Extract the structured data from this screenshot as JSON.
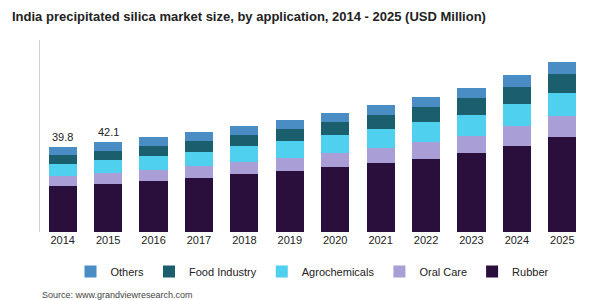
{
  "chart_data": {
    "type": "bar",
    "title": "India precipitated silica market size, by application, 2014 - 2025 (USD Million)",
    "source": "Source: www.grandviewresearch.com",
    "categories": [
      "2014",
      "2015",
      "2016",
      "2017",
      "2018",
      "2019",
      "2020",
      "2021",
      "2022",
      "2023",
      "2024",
      "2025"
    ],
    "series": [
      {
        "name": "Rubber",
        "color": "#2a0e3c",
        "values": [
          21.6,
          22.7,
          24.0,
          25.4,
          27.0,
          28.6,
          30.4,
          32.3,
          34.4,
          36.8,
          40.5,
          44.5
        ]
      },
      {
        "name": "Oral Care",
        "color": "#a99ed6",
        "values": [
          4.6,
          4.9,
          5.2,
          5.5,
          5.9,
          6.3,
          6.8,
          7.2,
          7.8,
          8.4,
          9.0,
          9.8
        ]
      },
      {
        "name": "Agrochemicals",
        "color": "#4fd0ee",
        "values": [
          5.7,
          6.1,
          6.4,
          6.8,
          7.2,
          7.6,
          8.1,
          8.6,
          9.2,
          9.8,
          10.3,
          10.8
        ]
      },
      {
        "name": "Food Industry",
        "color": "#1b5f6e",
        "values": [
          4.1,
          4.4,
          4.7,
          5.0,
          5.4,
          5.7,
          6.1,
          6.6,
          7.0,
          7.6,
          8.2,
          8.8
        ]
      },
      {
        "name": "Others",
        "color": "#4a8dc4",
        "values": [
          3.8,
          4.0,
          4.1,
          4.2,
          4.3,
          4.4,
          4.5,
          4.7,
          4.9,
          5.1,
          5.4,
          5.7
        ]
      }
    ],
    "annotations": [
      {
        "x": "2014",
        "y": 39.8,
        "text": "39.8"
      },
      {
        "x": "2015",
        "y": 42.1,
        "text": "42.1"
      }
    ],
    "stacked": true,
    "ylim": [
      0,
      90
    ],
    "yticks": [],
    "grid": false,
    "tick_labels": "x",
    "legend": "bottom"
  }
}
